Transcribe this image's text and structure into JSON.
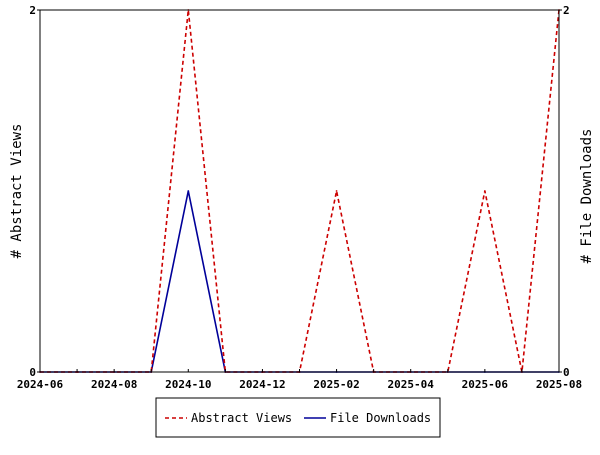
{
  "chart_data": {
    "type": "line",
    "title": "",
    "x": [
      "2024-06",
      "2024-07",
      "2024-08",
      "2024-09",
      "2024-10",
      "2024-11",
      "2024-12",
      "2025-01",
      "2025-02",
      "2025-03",
      "2025-04",
      "2025-05",
      "2025-06",
      "2025-07",
      "2025-08"
    ],
    "x_ticks": [
      "2024-06",
      "2024-08",
      "2024-10",
      "2024-12",
      "2025-02",
      "2025-04",
      "2025-06",
      "2025-08"
    ],
    "series": [
      {
        "name": "Abstract Views",
        "axis": "left",
        "color": "#cc0000",
        "style": "dashed",
        "values": [
          0,
          0,
          0,
          0,
          2,
          0,
          0,
          0,
          1,
          0,
          0,
          0,
          1,
          0,
          2
        ]
      },
      {
        "name": "File Downloads",
        "axis": "right",
        "color": "#000099",
        "style": "solid",
        "values": [
          0,
          0,
          0,
          0,
          1,
          0,
          0,
          0,
          0,
          0,
          0,
          0,
          0,
          0,
          0
        ]
      }
    ],
    "ylabel_left": "# Abstract Views",
    "ylabel_right": "# File Downloads",
    "ylim": [
      0,
      2
    ],
    "y_ticks_left": [
      "0",
      "2"
    ],
    "y_ticks_right": [
      "0",
      "2"
    ],
    "grid": false,
    "legend": "bottom-center"
  }
}
